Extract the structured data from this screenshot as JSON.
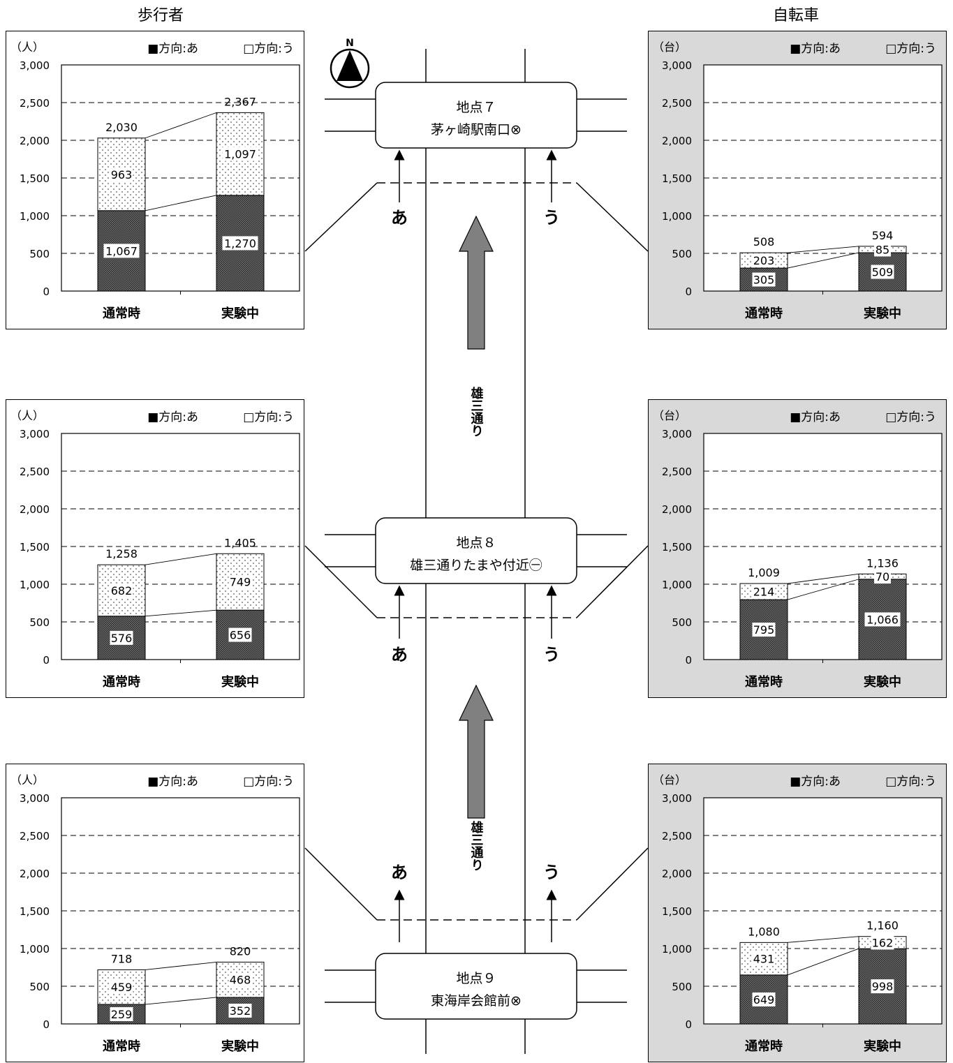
{
  "columns": {
    "pedestrian": "歩行者",
    "bicycle": "自転車"
  },
  "legend": {
    "dir_a": "■方向:あ",
    "dir_u": "□方向:う"
  },
  "units": {
    "pedestrian": "（人）",
    "bicycle": "（台）"
  },
  "map": {
    "north": "N",
    "road_label": "雄三通り",
    "dir_a": "あ",
    "dir_u": "う",
    "points": [
      {
        "line1": "地点７",
        "line2": "茅ヶ崎駅南口⊗"
      },
      {
        "line1": "地点８",
        "line2": "雄三通りたまや付近㊀"
      },
      {
        "line1": "地点９",
        "line2": "東海岸会館前⊗"
      }
    ]
  },
  "chart_data": [
    {
      "id": "p7",
      "type": "bar",
      "stacked": true,
      "unit_label": "（人）",
      "legend_position": "top-right",
      "categories": [
        "通常時",
        "実験中"
      ],
      "yticks": [
        "0",
        "500",
        "1,000",
        "1,500",
        "2,000",
        "2,500",
        "3,000"
      ],
      "ylim": [
        0,
        3000
      ],
      "series": [
        {
          "name": "方向:あ",
          "values": [
            1067,
            1270
          ]
        },
        {
          "name": "方向:う",
          "values": [
            963,
            1097
          ]
        }
      ],
      "totals": [
        2030,
        2367
      ]
    },
    {
      "id": "b7",
      "type": "bar",
      "stacked": true,
      "unit_label": "（台）",
      "legend_position": "top-right",
      "categories": [
        "通常時",
        "実験中"
      ],
      "yticks": [
        "0",
        "500",
        "1,000",
        "1,500",
        "2,000",
        "2,500",
        "3,000"
      ],
      "ylim": [
        0,
        3000
      ],
      "series": [
        {
          "name": "方向:あ",
          "values": [
            305,
            509
          ]
        },
        {
          "name": "方向:う",
          "values": [
            203,
            85
          ]
        }
      ],
      "totals": [
        508,
        594
      ]
    },
    {
      "id": "p8",
      "type": "bar",
      "stacked": true,
      "unit_label": "（人）",
      "legend_position": "top-right",
      "categories": [
        "通常時",
        "実験中"
      ],
      "yticks": [
        "0",
        "500",
        "1,000",
        "1,500",
        "2,000",
        "2,500",
        "3,000"
      ],
      "ylim": [
        0,
        3000
      ],
      "series": [
        {
          "name": "方向:あ",
          "values": [
            576,
            656
          ]
        },
        {
          "name": "方向:う",
          "values": [
            682,
            749
          ]
        }
      ],
      "totals": [
        1258,
        1405
      ]
    },
    {
      "id": "b8",
      "type": "bar",
      "stacked": true,
      "unit_label": "（台）",
      "legend_position": "top-right",
      "categories": [
        "通常時",
        "実験中"
      ],
      "yticks": [
        "0",
        "500",
        "1,000",
        "1,500",
        "2,000",
        "2,500",
        "3,000"
      ],
      "ylim": [
        0,
        3000
      ],
      "series": [
        {
          "name": "方向:あ",
          "values": [
            795,
            1066
          ]
        },
        {
          "name": "方向:う",
          "values": [
            214,
            70
          ]
        }
      ],
      "totals": [
        1009,
        1136
      ]
    },
    {
      "id": "p9",
      "type": "bar",
      "stacked": true,
      "unit_label": "（人）",
      "legend_position": "top-right",
      "categories": [
        "通常時",
        "実験中"
      ],
      "yticks": [
        "0",
        "500",
        "1,000",
        "1,500",
        "2,000",
        "2,500",
        "3,000"
      ],
      "ylim": [
        0,
        3000
      ],
      "series": [
        {
          "name": "方向:あ",
          "values": [
            259,
            352
          ]
        },
        {
          "name": "方向:う",
          "values": [
            459,
            468
          ]
        }
      ],
      "totals": [
        718,
        820
      ]
    },
    {
      "id": "b9",
      "type": "bar",
      "stacked": true,
      "unit_label": "（台）",
      "legend_position": "top-right",
      "categories": [
        "通常時",
        "実験中"
      ],
      "yticks": [
        "0",
        "500",
        "1,000",
        "1,500",
        "2,000",
        "2,500",
        "3,000"
      ],
      "ylim": [
        0,
        3000
      ],
      "series": [
        {
          "name": "方向:あ",
          "values": [
            649,
            998
          ]
        },
        {
          "name": "方向:う",
          "values": [
            431,
            162
          ]
        }
      ],
      "totals": [
        1080,
        1160
      ]
    }
  ]
}
